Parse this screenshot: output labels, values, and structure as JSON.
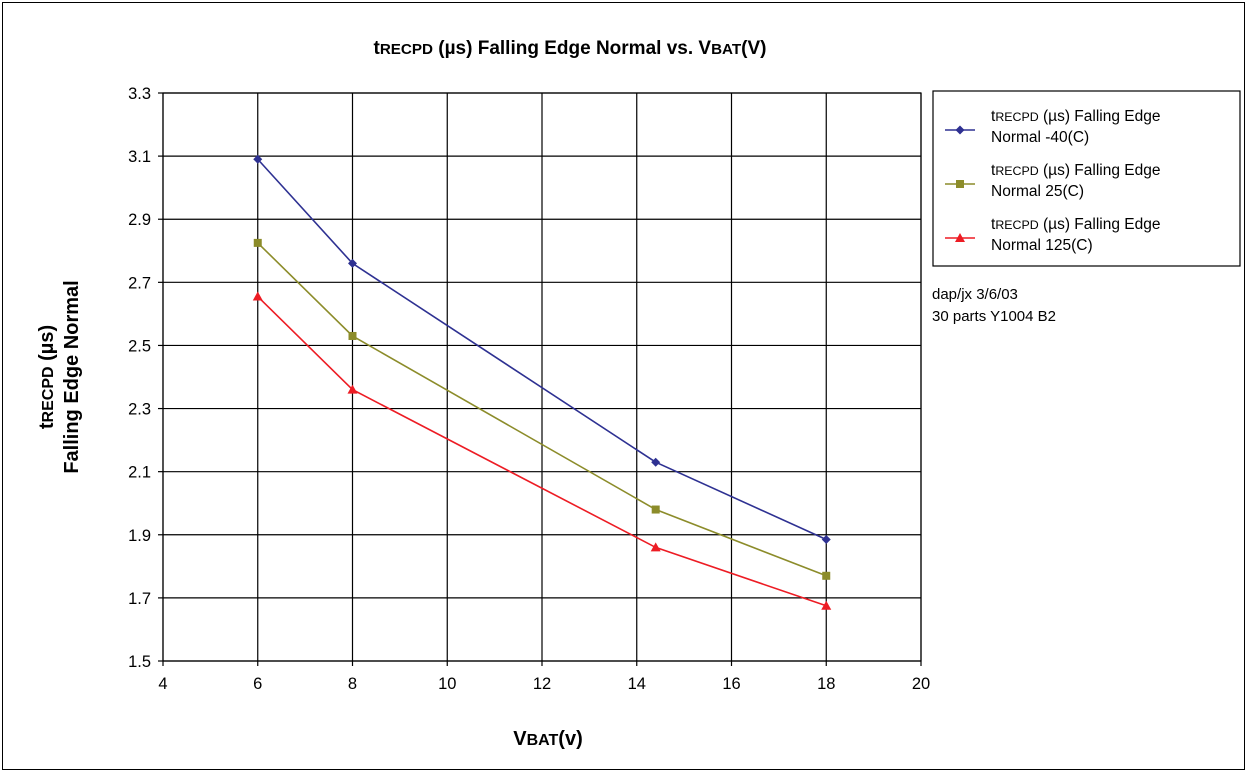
{
  "chart_data": {
    "type": "line",
    "title": {
      "prefix": "t",
      "sub": "RECPD",
      "rest": " (µs) Falling Edge Normal vs. V",
      "sub2": "BAT",
      "rest2": "(V)"
    },
    "xlabel": {
      "prefix": "V",
      "sub": "BAT",
      "rest": "(v)"
    },
    "ylabel": {
      "line1_prefix": "t",
      "line1_sub": "RECPD",
      "line1_rest": " (µs)",
      "line2": "Falling Edge Normal"
    },
    "xlim": [
      4,
      20
    ],
    "ylim": [
      1.5,
      3.3
    ],
    "x_ticks": [
      4,
      6,
      8,
      10,
      12,
      14,
      16,
      18,
      20
    ],
    "y_ticks": [
      "1.5",
      "1.7",
      "1.9",
      "2.1",
      "2.3",
      "2.5",
      "2.7",
      "2.9",
      "3.1",
      "3.3"
    ],
    "grid": true,
    "legend_position": "right",
    "series": [
      {
        "name_prefix": "t",
        "name_sub": "RECPD",
        "name_rest": " (µs) Falling Edge",
        "name_line2": "Normal -40(C)",
        "color": "#2e3192",
        "marker": "diamond",
        "x": [
          6,
          8,
          14.4,
          18
        ],
        "y": [
          3.09,
          2.76,
          2.13,
          1.885
        ]
      },
      {
        "name_prefix": "t",
        "name_sub": "RECPD",
        "name_rest": " (µs) Falling Edge",
        "name_line2": "Normal 25(C)",
        "color": "#8c8c2a",
        "marker": "square",
        "x": [
          6,
          8,
          14.4,
          18
        ],
        "y": [
          2.825,
          2.53,
          1.98,
          1.77
        ]
      },
      {
        "name_prefix": "t",
        "name_sub": "RECPD",
        "name_rest": " (µs) Falling Edge",
        "name_line2": "Normal 125(C)",
        "color": "#ed1c24",
        "marker": "triangle",
        "x": [
          6,
          8,
          14.4,
          18
        ],
        "y": [
          2.655,
          2.36,
          1.86,
          1.675
        ]
      }
    ],
    "annotations": [
      "dap/jx 3/6/03",
      "30 parts Y1004 B2"
    ]
  }
}
